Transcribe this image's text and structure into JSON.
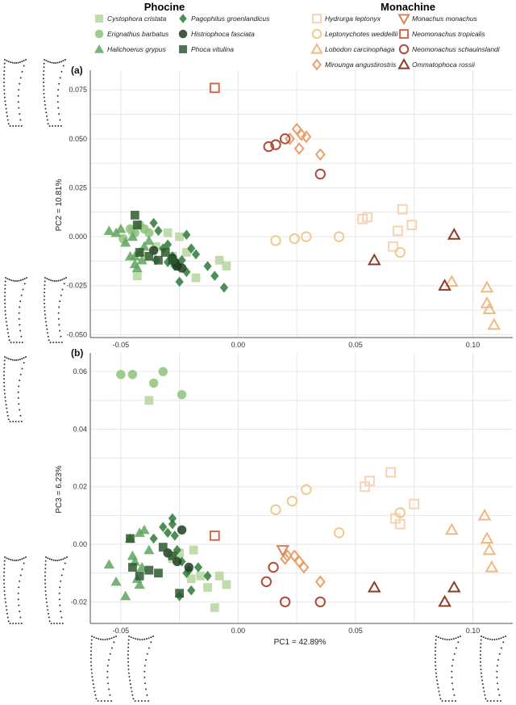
{
  "legend": {
    "phocine_title": "Phocine",
    "monachine_title": "Monachine",
    "phocine_color": "#3a7d3a",
    "monachine_color": "#d9845a"
  },
  "species": [
    {
      "name": "Cystophora cristata",
      "group": "phocine",
      "shape": "square",
      "filled": true,
      "color": "#b6d69e"
    },
    {
      "name": "Erignathus barbatus",
      "group": "phocine",
      "shape": "circle",
      "filled": true,
      "color": "#8dc27a"
    },
    {
      "name": "Halichoerus grypus",
      "group": "phocine",
      "shape": "triangle",
      "filled": true,
      "color": "#5fa560"
    },
    {
      "name": "Pagophilus groenlandicus",
      "group": "phocine",
      "shape": "diamond",
      "filled": true,
      "color": "#2e7a3a"
    },
    {
      "name": "Histriophoca fasciata",
      "group": "phocine",
      "shape": "circle",
      "filled": true,
      "color": "#1f3d22"
    },
    {
      "name": "Phoca vitulina",
      "group": "phocine",
      "shape": "square",
      "filled": true,
      "color": "#2d5a2f"
    },
    {
      "name": "Hydrurga leptonyx",
      "group": "monachine",
      "shape": "square",
      "filled": false,
      "color": "#f5d3b3"
    },
    {
      "name": "Leptonychotes weddellii",
      "group": "monachine",
      "shape": "circle",
      "filled": false,
      "color": "#f0c98f"
    },
    {
      "name": "Lobodon carcinophaga",
      "group": "monachine",
      "shape": "triangle",
      "filled": false,
      "color": "#f0b982"
    },
    {
      "name": "Mirounga angustirostris",
      "group": "monachine",
      "shape": "diamond",
      "filled": false,
      "color": "#e8a06a"
    },
    {
      "name": "Monachus monachus",
      "group": "monachine",
      "shape": "triangle-down",
      "filled": false,
      "color": "#d9845a"
    },
    {
      "name": "Neomonachus tropicalis",
      "group": "monachine",
      "shape": "square",
      "filled": false,
      "color": "#d06a4e"
    },
    {
      "name": "Neomonachus schauinslandi",
      "group": "monachine",
      "shape": "circle",
      "filled": false,
      "color": "#b04b3a"
    },
    {
      "name": "Ommatophoca rossii",
      "group": "monachine",
      "shape": "triangle",
      "filled": false,
      "color": "#8e3b2a"
    }
  ],
  "chart_data": [
    {
      "type": "scatter",
      "panel": "(a)",
      "xlabel": "",
      "ylabel": "PC2 = 10.81%",
      "xlim": [
        -0.063,
        0.117
      ],
      "ylim": [
        -0.0515,
        0.085
      ],
      "xticks": [
        -0.05,
        0.0,
        0.05,
        0.1
      ],
      "xtick_labels": [
        "-0.05",
        "0.00",
        "0.05",
        "0.10"
      ],
      "yticks": [
        -0.05,
        -0.025,
        0.0,
        0.025,
        0.05,
        0.075
      ],
      "ytick_labels": [
        "-0.050",
        "-0.025",
        "0.000",
        "0.025",
        "0.050",
        "0.075"
      ],
      "grid": true,
      "series": [
        {
          "name": "Cystophora cristata",
          "x": [
            -0.045,
            -0.043,
            -0.035,
            -0.03,
            -0.025,
            -0.018,
            -0.008,
            -0.005,
            -0.028,
            -0.022
          ],
          "y": [
            0.003,
            -0.02,
            -0.005,
            0.002,
            0.0,
            -0.021,
            -0.012,
            -0.015,
            -0.01,
            -0.008
          ]
        },
        {
          "name": "Erignathus barbatus",
          "x": [
            -0.049,
            -0.046,
            -0.044,
            -0.042,
            -0.04,
            -0.038
          ],
          "y": [
            -0.001,
            0.004,
            0.002,
            0.006,
            0.004,
            0.002
          ]
        },
        {
          "name": "Halichoerus grypus",
          "x": [
            -0.055,
            -0.052,
            -0.05,
            -0.048,
            -0.046,
            -0.044,
            -0.043,
            -0.042,
            -0.041,
            -0.045,
            -0.04,
            -0.038,
            -0.044
          ],
          "y": [
            0.003,
            0.002,
            0.004,
            -0.003,
            -0.01,
            -0.014,
            -0.016,
            -0.008,
            -0.012,
            0.0,
            -0.005,
            -0.002,
            -0.01
          ]
        },
        {
          "name": "Pagophilus groenlandicus",
          "x": [
            -0.036,
            -0.034,
            -0.032,
            -0.03,
            -0.028,
            -0.027,
            -0.026,
            -0.024,
            -0.022,
            -0.02,
            -0.018,
            -0.013,
            -0.01,
            -0.006,
            -0.025,
            -0.022,
            -0.03,
            -0.035
          ],
          "y": [
            0.007,
            0.003,
            -0.006,
            -0.004,
            -0.01,
            -0.015,
            -0.014,
            -0.012,
            -0.018,
            -0.006,
            -0.009,
            -0.015,
            -0.02,
            -0.026,
            -0.023,
            0.001,
            -0.013,
            -0.012
          ]
        },
        {
          "name": "Histriophoca fasciata",
          "x": [
            -0.036,
            -0.028,
            -0.026,
            -0.024,
            -0.027
          ],
          "y": [
            -0.007,
            -0.011,
            -0.015,
            -0.016,
            -0.013
          ]
        },
        {
          "name": "Phoca vitulina",
          "x": [
            -0.044,
            -0.043,
            -0.042,
            -0.038,
            -0.034,
            -0.031,
            -0.028
          ],
          "y": [
            0.011,
            0.006,
            -0.008,
            -0.01,
            -0.012,
            -0.008,
            -0.012
          ]
        },
        {
          "name": "Hydrurga leptonyx",
          "x": [
            0.053,
            0.055,
            0.066,
            0.068,
            0.07,
            0.074
          ],
          "y": [
            0.009,
            0.01,
            -0.005,
            0.003,
            0.014,
            0.006
          ]
        },
        {
          "name": "Leptonychotes weddellii",
          "x": [
            0.016,
            0.024,
            0.029,
            0.043,
            0.069
          ],
          "y": [
            -0.002,
            -0.001,
            0.0,
            0.0,
            -0.008
          ]
        },
        {
          "name": "Lobodon carcinophaga",
          "x": [
            0.091,
            0.106,
            0.106,
            0.107,
            0.109
          ],
          "y": [
            -0.023,
            -0.026,
            -0.034,
            -0.037,
            -0.045
          ]
        },
        {
          "name": "Mirounga angustirostris",
          "x": [
            0.022,
            0.025,
            0.027,
            0.029,
            0.026,
            0.035
          ],
          "y": [
            0.05,
            0.055,
            0.052,
            0.051,
            0.045,
            0.042
          ]
        },
        {
          "name": "Neomonachus tropicalis",
          "x": [
            -0.01
          ],
          "y": [
            0.076
          ]
        },
        {
          "name": "Neomonachus schauinslandi",
          "x": [
            0.013,
            0.016,
            0.02,
            0.035
          ],
          "y": [
            0.046,
            0.047,
            0.05,
            0.032
          ]
        },
        {
          "name": "Ommatophoca rossii",
          "x": [
            0.058,
            0.088,
            0.092
          ],
          "y": [
            -0.012,
            -0.025,
            0.001
          ]
        }
      ]
    },
    {
      "type": "scatter",
      "panel": "(b)",
      "xlabel": "PC1 = 42.89%",
      "ylabel": "PC3 = 6.23%",
      "xlim": [
        -0.063,
        0.117
      ],
      "ylim": [
        -0.0275,
        0.0665
      ],
      "xticks": [
        -0.05,
        0.0,
        0.05,
        0.1
      ],
      "xtick_labels": [
        "-0.05",
        "0.00",
        "0.05",
        "0.10"
      ],
      "yticks": [
        -0.02,
        0.0,
        0.02,
        0.04,
        0.06
      ],
      "ytick_labels": [
        "-0.02",
        "0.00",
        "0.02",
        "0.04",
        "0.06"
      ],
      "grid": true,
      "series": [
        {
          "name": "Cystophora cristata",
          "x": [
            -0.038,
            -0.025,
            -0.02,
            -0.016,
            -0.013,
            -0.01,
            -0.008,
            -0.005,
            -0.028,
            -0.019
          ],
          "y": [
            0.05,
            -0.003,
            -0.012,
            -0.011,
            -0.015,
            -0.022,
            -0.011,
            -0.014,
            -0.005,
            -0.002
          ]
        },
        {
          "name": "Erignathus barbatus",
          "x": [
            -0.05,
            -0.045,
            -0.036,
            -0.032,
            -0.024
          ],
          "y": [
            0.059,
            0.059,
            0.056,
            0.06,
            0.052
          ]
        },
        {
          "name": "Halichoerus grypus",
          "x": [
            -0.055,
            -0.052,
            -0.048,
            -0.046,
            -0.044,
            -0.042,
            -0.04,
            -0.043,
            -0.041,
            -0.045,
            -0.038,
            -0.042
          ],
          "y": [
            -0.007,
            -0.013,
            -0.018,
            0.002,
            -0.006,
            0.004,
            0.005,
            -0.012,
            -0.008,
            -0.004,
            -0.002,
            -0.014
          ]
        },
        {
          "name": "Pagophilus groenlandicus",
          "x": [
            -0.036,
            -0.032,
            -0.03,
            -0.028,
            -0.027,
            -0.026,
            -0.024,
            -0.022,
            -0.02,
            -0.017,
            -0.013,
            -0.025,
            -0.028,
            -0.021
          ],
          "y": [
            0.002,
            0.006,
            0.004,
            0.009,
            0.003,
            -0.002,
            -0.006,
            -0.01,
            -0.016,
            -0.008,
            -0.011,
            -0.018,
            0.007,
            -0.009
          ]
        },
        {
          "name": "Histriophoca fasciata",
          "x": [
            -0.024,
            -0.03,
            -0.026,
            -0.021
          ],
          "y": [
            0.005,
            -0.003,
            -0.006,
            -0.008
          ]
        },
        {
          "name": "Phoca vitulina",
          "x": [
            -0.046,
            -0.042,
            -0.038,
            -0.034,
            -0.032,
            -0.028,
            -0.025,
            -0.045
          ],
          "y": [
            0.002,
            -0.011,
            -0.009,
            -0.01,
            -0.001,
            -0.004,
            -0.017,
            -0.008
          ]
        },
        {
          "name": "Hydrurga leptonyx",
          "x": [
            0.054,
            0.056,
            0.065,
            0.067,
            0.069,
            0.075
          ],
          "y": [
            0.02,
            0.022,
            0.025,
            0.009,
            0.007,
            0.014
          ]
        },
        {
          "name": "Leptonychotes weddellii",
          "x": [
            0.016,
            0.023,
            0.029,
            0.043,
            0.069
          ],
          "y": [
            0.012,
            0.015,
            0.019,
            0.004,
            0.011
          ]
        },
        {
          "name": "Lobodon carcinophaga",
          "x": [
            0.091,
            0.105,
            0.106,
            0.107,
            0.108
          ],
          "y": [
            0.005,
            0.01,
            0.002,
            -0.002,
            -0.008
          ]
        },
        {
          "name": "Mirounga angustirostris",
          "x": [
            0.02,
            0.024,
            0.026,
            0.028,
            0.035,
            0.021
          ],
          "y": [
            -0.005,
            -0.004,
            -0.006,
            -0.008,
            -0.013,
            -0.004
          ]
        },
        {
          "name": "Monachus monachus",
          "x": [
            0.019
          ],
          "y": [
            -0.002
          ]
        },
        {
          "name": "Neomonachus tropicalis",
          "x": [
            -0.01
          ],
          "y": [
            0.003
          ]
        },
        {
          "name": "Neomonachus schauinslandi",
          "x": [
            0.012,
            0.015,
            0.02,
            0.035
          ],
          "y": [
            -0.013,
            -0.008,
            -0.02,
            -0.02
          ]
        },
        {
          "name": "Ommatophoca rossii",
          "x": [
            0.058,
            0.088,
            0.092
          ],
          "y": [
            -0.015,
            -0.02,
            -0.015
          ]
        }
      ]
    }
  ]
}
